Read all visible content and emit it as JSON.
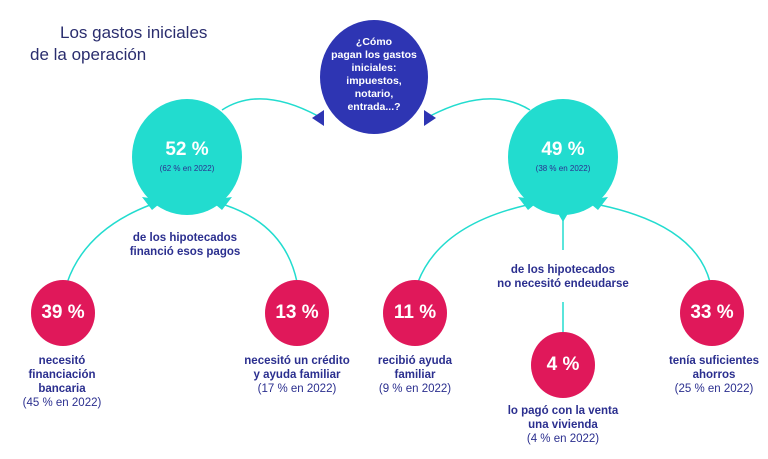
{
  "title": {
    "line1": "Los gastos iniciales",
    "line2": "de la operación"
  },
  "question": {
    "lines": [
      "¿Cómo",
      "pagan los gastos",
      "iniciales:",
      "impuestos,",
      "notario,",
      "entrada...?"
    ]
  },
  "left": {
    "value": "52 %",
    "prev": "(62 % en 2022)",
    "label": [
      "de los hipotecados",
      "financió esos pagos"
    ]
  },
  "right": {
    "value": "49 %",
    "prev": "(38 % en 2022)",
    "label": [
      "de los hipotecados",
      "no necesitó endeudarse"
    ]
  },
  "items": [
    {
      "value": "39 %",
      "label": [
        "necesitó",
        "financiación",
        "bancaria"
      ],
      "prev": "(45 % en 2022)"
    },
    {
      "value": "13 %",
      "label": [
        "necesitó un crédito",
        "y ayuda familiar"
      ],
      "prev": "(17 % en 2022)"
    },
    {
      "value": "11 %",
      "label": [
        "recibió ayuda",
        "familiar"
      ],
      "prev": "(9 % en 2022)"
    },
    {
      "value": "4 %",
      "label": [
        "lo pagó con la venta",
        "una vivienda"
      ],
      "prev": "(4 % en 2022)"
    },
    {
      "value": "33 %",
      "label": [
        "tenía suficientes",
        "ahorros"
      ],
      "prev": "(25 % en 2022)"
    }
  ],
  "colors": {
    "navy": "#2e35b3",
    "teal": "#22dccf",
    "red": "#e0185a",
    "text": "#2b2f8f"
  }
}
